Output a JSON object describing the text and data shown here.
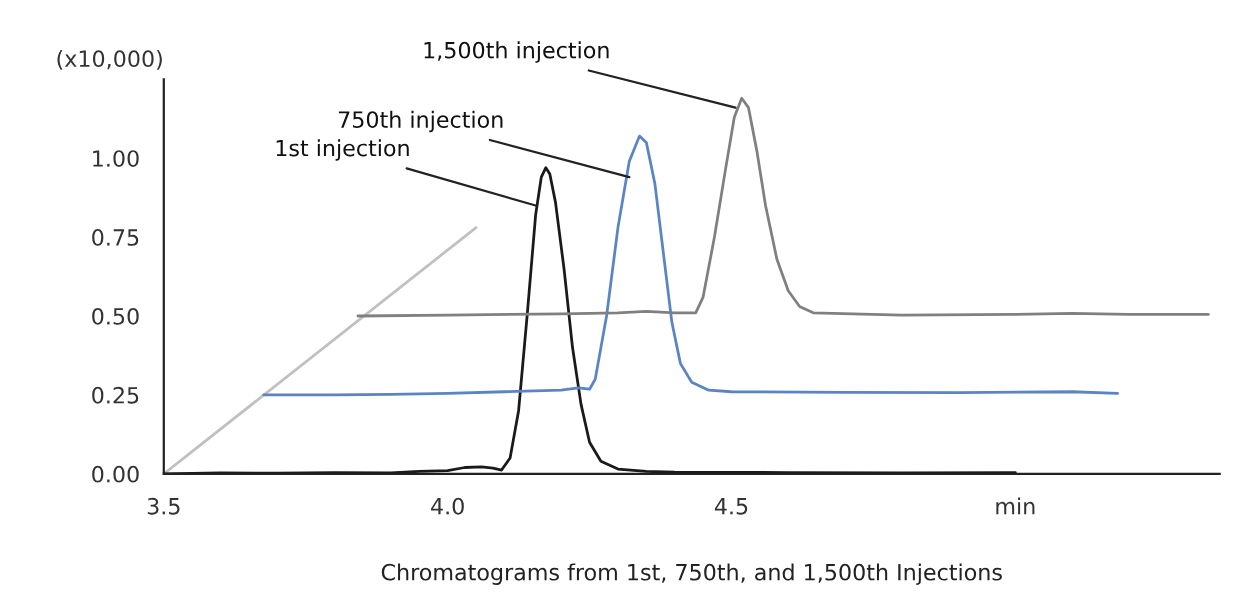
{
  "chart_data": {
    "type": "line",
    "xlabel": "Chromatograms from 1st, 750th, and 1,500th Injections",
    "ylabel": "(x10,000)",
    "xlim": [
      3.5,
      5.36
    ],
    "ylim": [
      0,
      1.25
    ],
    "xticks": [
      {
        "value": 3.5,
        "label": "3.5"
      },
      {
        "value": 4.0,
        "label": "4.0"
      },
      {
        "value": 4.5,
        "label": "4.5"
      },
      {
        "value": 5.0,
        "label": "min"
      }
    ],
    "yticks": [
      {
        "value": 0,
        "label": "0.00"
      },
      {
        "value": 0.25,
        "label": "0.25"
      },
      {
        "value": 0.5,
        "label": "0.50"
      },
      {
        "value": 0.75,
        "label": "0.75"
      },
      {
        "value": 1.0,
        "label": "1.00"
      }
    ],
    "grid": false,
    "legend": false,
    "marker": "none",
    "line_style": "solid",
    "series": [
      {
        "color": "#c0c0c0",
        "x": [
          3.5,
          4.05
        ],
        "values": [
          0,
          0.78
        ]
      },
      {
        "color": "#1a1a1a",
        "x": [
          3.5,
          3.6,
          3.7,
          3.8,
          3.9,
          3.95,
          4.0,
          4.03,
          4.06,
          4.08,
          4.095,
          4.11,
          4.125,
          4.14,
          4.155,
          4.165,
          4.173,
          4.18,
          4.19,
          4.205,
          4.22,
          4.235,
          4.25,
          4.27,
          4.3,
          4.35,
          4.4,
          4.6,
          4.8,
          5.0
        ],
        "values": [
          0,
          0.003,
          0.002,
          0.004,
          0.003,
          0.008,
          0.01,
          0.02,
          0.022,
          0.018,
          0.012,
          0.05,
          0.2,
          0.5,
          0.82,
          0.94,
          0.97,
          0.95,
          0.86,
          0.65,
          0.4,
          0.22,
          0.1,
          0.04,
          0.015,
          0.008,
          0.005,
          0.004,
          0.003,
          0.004
        ]
      },
      {
        "color": "#5b84c4",
        "x": [
          3.676,
          3.8,
          3.9,
          4.0,
          4.1,
          4.2,
          4.23,
          4.25,
          4.26,
          4.28,
          4.3,
          4.32,
          4.338,
          4.35,
          4.365,
          4.38,
          4.395,
          4.41,
          4.43,
          4.46,
          4.5,
          4.7,
          4.9,
          5.1,
          5.18
        ],
        "values": [
          0.25,
          0.25,
          0.252,
          0.255,
          0.26,
          0.265,
          0.272,
          0.268,
          0.3,
          0.5,
          0.78,
          0.99,
          1.07,
          1.05,
          0.92,
          0.7,
          0.48,
          0.35,
          0.29,
          0.265,
          0.26,
          0.258,
          0.257,
          0.26,
          0.255
        ]
      },
      {
        "color": "#808080",
        "x": [
          3.842,
          4.0,
          4.2,
          4.3,
          4.35,
          4.4,
          4.437,
          4.45,
          4.47,
          4.49,
          4.505,
          4.518,
          4.53,
          4.545,
          4.56,
          4.58,
          4.6,
          4.62,
          4.644,
          4.8,
          5.0,
          5.1,
          5.2,
          5.34
        ],
        "values": [
          0.5,
          0.503,
          0.507,
          0.51,
          0.515,
          0.51,
          0.51,
          0.56,
          0.75,
          0.97,
          1.13,
          1.19,
          1.16,
          1.02,
          0.85,
          0.68,
          0.58,
          0.53,
          0.51,
          0.503,
          0.505,
          0.508,
          0.505,
          0.505
        ]
      }
    ],
    "annotations": [
      {
        "text": "1st injection",
        "x": 4.155,
        "y": 0.85
      },
      {
        "text": "750th injection",
        "x": 4.32,
        "y": 0.94
      },
      {
        "text": "1,500th injection",
        "x": 4.507,
        "y": 1.16
      }
    ]
  }
}
